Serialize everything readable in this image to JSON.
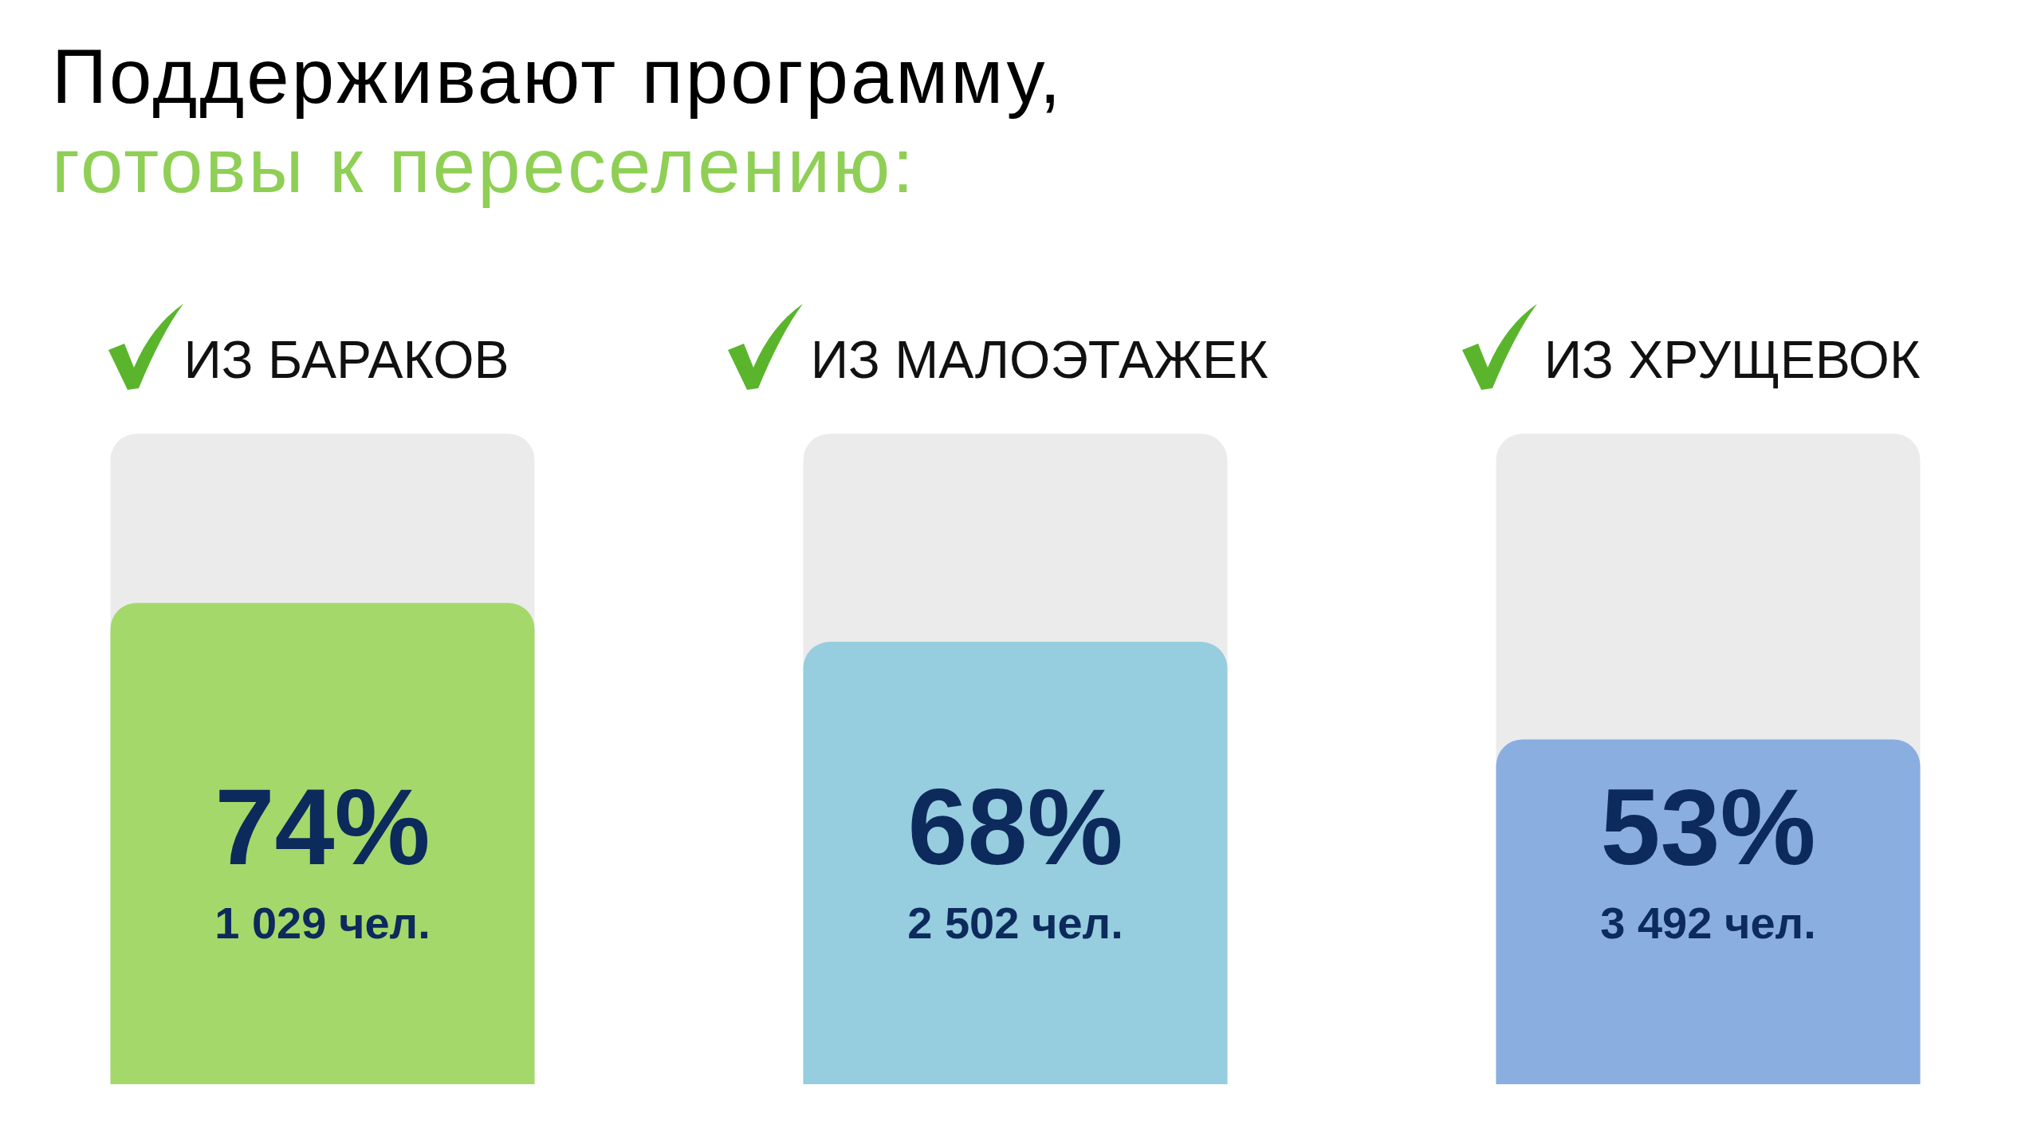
{
  "chart_data": {
    "type": "bar",
    "title": "Поддерживают программу,",
    "subtitle": "готовы к переселению:",
    "categories": [
      "ИЗ БАРАКОВ",
      "ИЗ МАЛОЭТАЖЕК",
      "ИЗ ХРУЩЕВОК"
    ],
    "values": [
      74,
      68,
      53
    ],
    "colors": [
      "#a5d86b",
      "#96cddf",
      "#8aaee0"
    ],
    "value_labels": [
      "74%",
      "68%",
      "53%"
    ],
    "annotations": [
      "1 029 чел.",
      "2 502 чел.",
      "3 492 чел."
    ],
    "ylim": [
      0,
      100
    ],
    "tick_labels": "x"
  }
}
